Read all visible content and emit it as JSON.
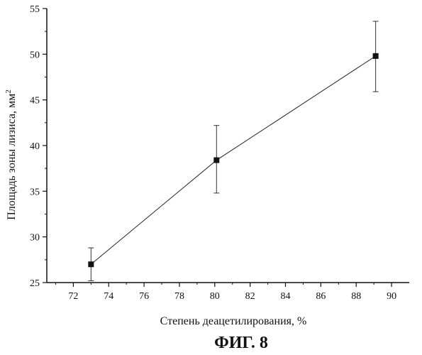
{
  "chart_data": {
    "type": "scatter",
    "title": "",
    "xlabel": "Степень деацетилирования, %",
    "ylabel": "Площадь зоны лизиса, мм",
    "ylabel_superscript": "2",
    "xlim": [
      70.5,
      91
    ],
    "ylim": [
      25,
      55
    ],
    "x_ticks": [
      72,
      74,
      76,
      78,
      80,
      82,
      84,
      86,
      88,
      90
    ],
    "y_ticks": [
      25,
      30,
      35,
      40,
      45,
      50,
      55
    ],
    "grid": false,
    "series": [
      {
        "x": [
          73,
          80.1,
          89.1
        ],
        "y": [
          27,
          38.4,
          49.8
        ],
        "error_low": [
          25.2,
          34.8,
          45.9
        ],
        "error_high": [
          28.8,
          42.2,
          53.6
        ],
        "line": true,
        "marker": "square"
      }
    ]
  },
  "figure_caption": "ФИГ. 8"
}
